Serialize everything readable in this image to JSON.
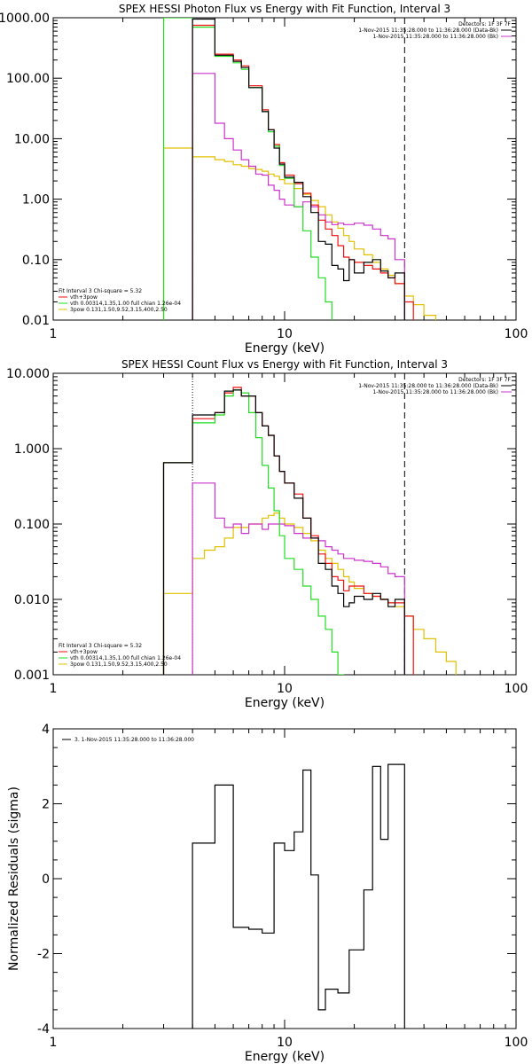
{
  "colors": {
    "black": "#000000",
    "red": "#ee1111",
    "green": "#22dd22",
    "magenta": "#cc33cc",
    "yellow": "#e0c000"
  },
  "chart_data": [
    {
      "type": "line",
      "title": "SPEX HESSI Photon Flux vs Energy with Fit Function, Interval 3",
      "xlabel": "Energy (keV)",
      "ylabel": "",
      "xscale": "log",
      "yscale": "log",
      "xlim": [
        1,
        100
      ],
      "ylim": [
        0.01,
        1000
      ],
      "xticks": [
        1,
        10,
        100
      ],
      "xticklabels": [
        "1",
        "10",
        "100"
      ],
      "yticks": [
        0.01,
        0.1,
        1,
        10,
        100,
        1000
      ],
      "yticklabels": [
        "0.01",
        "0.10",
        "1.00",
        "10.00",
        "100.00",
        "1000.00"
      ],
      "vlines": [
        {
          "x": 4.0,
          "style": "dotted",
          "color": "magenta"
        },
        {
          "x": 33.0,
          "style": "dashed",
          "color": "black"
        }
      ],
      "legend_top_right": {
        "lines": [
          {
            "text": "Detectors: 1F 3F 7F",
            "color": ""
          },
          {
            "text": "1-Nov-2015 11:35:28.000 to 11:36:28.000 (Data-Bk)",
            "color": "black"
          },
          {
            "text": "1-Nov-2015 11:35:28.000 to 11:36:28.000 (Bk)",
            "color": "magenta"
          }
        ]
      },
      "legend_bottom_left": {
        "header": "Fit Interval 3   Chi-square = 5.32",
        "lines": [
          {
            "text": "vth+3pow",
            "color": "red"
          },
          {
            "text": "vth 0.00314,1.35,1.00  full chian 1.26e-04",
            "color": "green"
          },
          {
            "text": "3pow 0.131,1.50,9.52,3.15,400,2.50",
            "color": "yellow"
          }
        ]
      },
      "bin_edges": [
        3.0,
        3.5,
        4.0,
        4.5,
        5.0,
        5.5,
        6.0,
        6.5,
        7.0,
        7.5,
        8.0,
        8.5,
        9.0,
        9.5,
        10.0,
        11.0,
        12.0,
        13.0,
        14.0,
        15.0,
        16.0,
        17.0,
        18.0,
        19.0,
        20.0,
        22.0,
        24.0,
        26.0,
        28.0,
        30.0,
        33.0,
        36.0,
        40.0,
        45.0,
        50.0
      ],
      "series": [
        {
          "color": "yellow",
          "values": [
            7,
            7,
            5,
            5,
            4.5,
            4.2,
            3.7,
            3.5,
            3.2,
            3.1,
            2.9,
            2.6,
            2.4,
            2.1,
            1.8,
            1.5,
            1.2,
            0.95,
            0.75,
            0.55,
            0.42,
            0.33,
            0.25,
            0.2,
            0.15,
            0.12,
            0.09,
            0.07,
            0.055,
            0.04,
            0.025,
            0.018,
            0.012,
            0.008
          ]
        },
        {
          "color": "magenta",
          "values": [
            null,
            null,
            120,
            120,
            18,
            10,
            6.5,
            4.5,
            3.5,
            2.6,
            2.5,
            1.7,
            1.4,
            1.0,
            0.8,
            0.75,
            0.9,
            0.75,
            0.55,
            0.42,
            0.38,
            0.4,
            0.38,
            0.38,
            0.4,
            0.37,
            0.32,
            0.25,
            0.22,
            0.1,
            0.003,
            null,
            null,
            null
          ]
        },
        {
          "color": "red",
          "values": [
            null,
            null,
            750,
            750,
            250,
            250,
            200,
            160,
            75,
            75,
            30,
            14,
            8,
            4,
            2.5,
            1.8,
            1.25,
            0.8,
            0.45,
            0.32,
            0.25,
            0.17,
            0.11,
            0.1,
            0.09,
            0.08,
            0.07,
            0.06,
            0.05,
            0.04,
            0.02,
            null,
            null,
            null
          ]
        },
        {
          "color": "green",
          "values": [
            1000,
            1000,
            700,
            700,
            230,
            230,
            180,
            140,
            70,
            70,
            28,
            13,
            7.5,
            3.6,
            2.2,
            0.75,
            0.3,
            0.11,
            0.05,
            0.02,
            0.005,
            null,
            null,
            null,
            null,
            null,
            null,
            null,
            null,
            null,
            null,
            null,
            null,
            null
          ]
        },
        {
          "color": "black",
          "values": [
            null,
            null,
            950,
            950,
            240,
            240,
            190,
            150,
            70,
            70,
            28,
            14,
            7,
            3.8,
            2.3,
            1.9,
            1.1,
            0.6,
            0.2,
            0.18,
            0.08,
            0.07,
            0.045,
            0.1,
            0.06,
            0.09,
            0.1,
            0.065,
            0.05,
            0.06,
            0.001,
            null,
            null,
            null
          ]
        }
      ]
    },
    {
      "type": "line",
      "title": "SPEX HESSI Count Flux vs Energy with Fit Function, Interval 3",
      "xlabel": "Energy (keV)",
      "ylabel": "",
      "xscale": "log",
      "yscale": "log",
      "xlim": [
        1,
        100
      ],
      "ylim": [
        0.001,
        10
      ],
      "xticks": [
        1,
        10,
        100
      ],
      "xticklabels": [
        "1",
        "10",
        "100"
      ],
      "yticks": [
        0.001,
        0.01,
        0.1,
        1,
        10
      ],
      "yticklabels": [
        "0.001",
        "0.010",
        "0.100",
        "1.000",
        "10.000"
      ],
      "vlines": [
        {
          "x": 4.0,
          "style": "dotted",
          "color": "black"
        },
        {
          "x": 33.0,
          "style": "dashed",
          "color": "black"
        }
      ],
      "legend_top_right": {
        "lines": [
          {
            "text": "Detectors: 1F 3F 7F",
            "color": ""
          },
          {
            "text": "1-Nov-2015 11:35:28.000 to 11:36:28.000 (Data-Bk)",
            "color": "black"
          },
          {
            "text": "1-Nov-2015 11:35:28.000 to 11:36:28.000 (Bk)",
            "color": "magenta"
          }
        ]
      },
      "legend_bottom_left": {
        "header": "Fit Interval 3   Chi-square = 5.32",
        "lines": [
          {
            "text": "vth+3pow",
            "color": "red"
          },
          {
            "text": "vth 0.00314,1.35,1.00  full chian 1.26e-04",
            "color": "green"
          },
          {
            "text": "3pow 0.131,1.50,9.52,3.15,400,2.50",
            "color": "yellow"
          }
        ]
      },
      "bin_edges": [
        3.0,
        3.5,
        4.0,
        4.5,
        5.0,
        5.5,
        6.0,
        6.5,
        7.0,
        7.5,
        8.0,
        8.5,
        9.0,
        9.5,
        10.0,
        11.0,
        12.0,
        13.0,
        14.0,
        15.0,
        16.0,
        17.0,
        18.0,
        19.0,
        20.0,
        22.0,
        24.0,
        26.0,
        28.0,
        30.0,
        33.0,
        36.0,
        40.0,
        45.0,
        50.0,
        55.0
      ],
      "series": [
        {
          "color": "yellow",
          "values": [
            0.012,
            0.012,
            0.035,
            0.045,
            0.05,
            0.065,
            0.09,
            0.09,
            0.1,
            0.1,
            0.12,
            0.13,
            0.14,
            0.12,
            0.1,
            0.09,
            0.075,
            0.06,
            0.045,
            0.035,
            0.03,
            0.025,
            0.02,
            0.017,
            0.014,
            0.012,
            0.011,
            0.01,
            0.009,
            0.008,
            0.006,
            0.004,
            0.003,
            0.002,
            0.0015
          ]
        },
        {
          "color": "magenta",
          "values": [
            null,
            null,
            0.35,
            0.35,
            0.12,
            0.09,
            0.1,
            0.075,
            0.1,
            0.1,
            0.085,
            0.1,
            0.1,
            0.1,
            0.095,
            0.075,
            0.065,
            0.065,
            0.06,
            0.05,
            0.045,
            0.04,
            0.035,
            0.035,
            0.033,
            0.032,
            0.03,
            0.027,
            0.022,
            0.02,
            0.0008,
            null,
            null,
            null,
            null
          ]
        },
        {
          "color": "red",
          "values": [
            0.65,
            0.65,
            2.5,
            2.5,
            3.0,
            5.5,
            6.5,
            5.0,
            5.0,
            3.0,
            2.0,
            1.5,
            0.8,
            0.5,
            0.35,
            0.25,
            0.12,
            0.07,
            0.04,
            0.03,
            0.02,
            0.018,
            0.013,
            0.015,
            0.015,
            0.012,
            0.011,
            0.01,
            0.009,
            0.009,
            0.006,
            null,
            null,
            null,
            null
          ]
        },
        {
          "color": "green",
          "values": [
            0.65,
            0.65,
            2.2,
            2.2,
            2.8,
            5.0,
            6.0,
            5.5,
            3.0,
            1.4,
            0.6,
            0.3,
            0.15,
            0.07,
            0.035,
            0.025,
            0.015,
            0.01,
            0.006,
            0.004,
            0.002,
            0.001,
            0.0008,
            null,
            null,
            null,
            null,
            null,
            null,
            null,
            null,
            null,
            null,
            null,
            null
          ]
        },
        {
          "color": "black",
          "values": [
            0.65,
            0.65,
            2.8,
            2.8,
            3.0,
            5.8,
            6.0,
            5.0,
            5.0,
            3.0,
            2.0,
            1.5,
            0.8,
            0.5,
            0.35,
            0.22,
            0.12,
            0.065,
            0.03,
            0.025,
            0.015,
            0.012,
            0.008,
            0.009,
            0.011,
            0.01,
            0.012,
            0.01,
            0.008,
            0.01,
            0.0005,
            null,
            null,
            null,
            null
          ]
        }
      ]
    },
    {
      "type": "line",
      "title": "",
      "xlabel": "Energy (keV)",
      "ylabel": "Normalized Residuals (sigma)",
      "xscale": "log",
      "yscale": "linear",
      "xlim": [
        1,
        100
      ],
      "ylim": [
        -4,
        4
      ],
      "xticks": [
        1,
        10,
        100
      ],
      "xticklabels": [
        "1",
        "10",
        "100"
      ],
      "yticks": [
        -4,
        -2,
        0,
        2,
        4
      ],
      "yticklabels": [
        "-4",
        "-2",
        "0",
        "2",
        "4"
      ],
      "legend_top_left": {
        "lines": [
          {
            "text": "3. 1-Nov-2015 11:35:28.000 to 11:36:28.000",
            "color": "black"
          }
        ]
      },
      "bin_edges": [
        4.0,
        4.5,
        5.0,
        5.5,
        6.0,
        6.5,
        7.0,
        7.5,
        8.0,
        8.5,
        9.0,
        9.5,
        10.0,
        11.0,
        12.0,
        13.0,
        14.0,
        15.0,
        16.0,
        17.0,
        18.0,
        19.0,
        20.0,
        22.0,
        24.0,
        26.0,
        28.0,
        30.0,
        33.0
      ],
      "series": [
        {
          "color": "black",
          "values": [
            0.95,
            0.95,
            2.5,
            2.5,
            -1.3,
            -1.3,
            -1.35,
            -1.35,
            -1.45,
            -1.45,
            0.95,
            0.95,
            0.75,
            1.25,
            2.9,
            0.1,
            -3.5,
            -2.95,
            -2.95,
            -3.05,
            -3.05,
            -1.9,
            -1.9,
            -0.3,
            3.0,
            1.05,
            3.05,
            3.05
          ]
        }
      ]
    }
  ]
}
